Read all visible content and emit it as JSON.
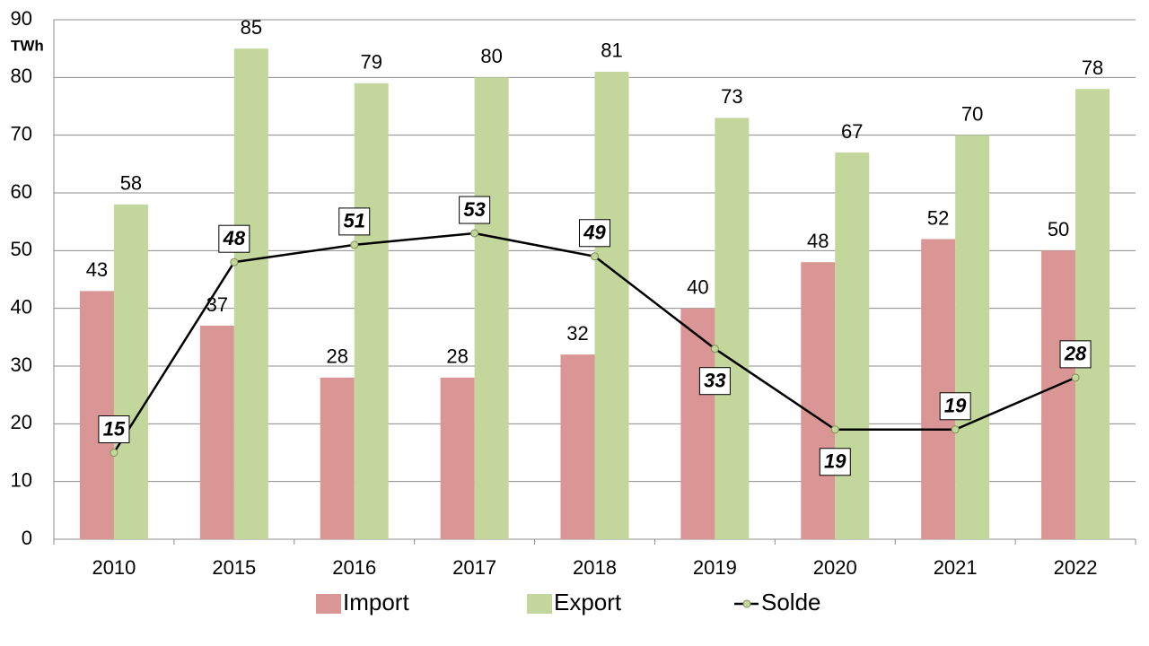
{
  "chart_data": {
    "type": "bar",
    "y_unit": "TWh",
    "categories": [
      "2010",
      "2015",
      "2016",
      "2017",
      "2018",
      "2019",
      "2020",
      "2021",
      "2022"
    ],
    "series": [
      {
        "name": "Import",
        "color": "#d99694",
        "values": [
          43,
          37,
          28,
          28,
          32,
          40,
          48,
          52,
          50
        ]
      },
      {
        "name": "Export",
        "color": "#c3d69b",
        "values": [
          58,
          85,
          79,
          80,
          81,
          73,
          67,
          70,
          78
        ]
      },
      {
        "name": "Solde",
        "type": "line",
        "color": "#000000",
        "values": [
          15,
          48,
          51,
          53,
          49,
          33,
          19,
          19,
          28
        ]
      }
    ],
    "ylim": [
      0,
      90
    ],
    "yticks": [
      0,
      10,
      20,
      30,
      40,
      50,
      60,
      70,
      80,
      90
    ],
    "grid": true
  }
}
